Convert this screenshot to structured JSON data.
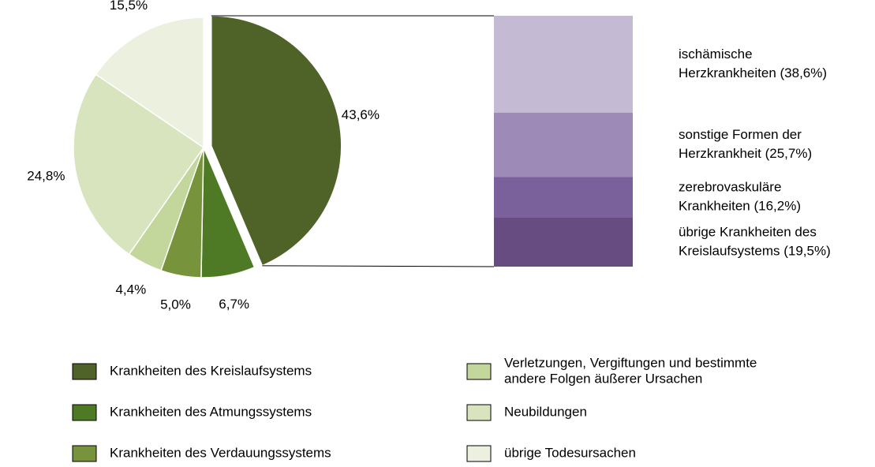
{
  "chart_data": {
    "type": "pie",
    "categories": [
      [
        "Krankheiten des Kreislaufsystems"
      ],
      [
        "Krankheiten des Atmungssystems"
      ],
      [
        "Krankheiten des Verdauungssystems"
      ],
      [
        "Verletzungen, Vergiftungen und bestimmte",
        "andere Folgen äußerer Ursachen"
      ],
      [
        "Neubildungen"
      ],
      [
        "übrige Todesursachen"
      ]
    ],
    "values": [
      43.6,
      6.7,
      5.0,
      4.4,
      24.8,
      15.5
    ],
    "value_labels": [
      "43,6%",
      "6,7%",
      "5,0%",
      "4,4%",
      "24,8%",
      "15,5%"
    ],
    "colors": [
      "#4f6228",
      "#4e7a26",
      "#77933c",
      "#c3d69b",
      "#d7e4bd",
      "#ebf1de"
    ],
    "exploded": 0,
    "breakdown": {
      "type": "bar",
      "stacked": true,
      "labels": [
        [
          "ischämische",
          "Herzkrankheiten (38,6%)"
        ],
        [
          "sonstige Formen der",
          "Herzkrankheit (25,7%)"
        ],
        [
          "zerebrovaskuläre",
          "Krankheiten (16,2%)"
        ],
        [
          "übrige Krankheiten des",
          "Kreislaufsystems (19,5%)"
        ]
      ],
      "values": [
        38.6,
        25.7,
        16.2,
        19.5
      ],
      "colors": [
        "#c4bad3",
        "#9e8ab6",
        "#7b619c",
        "#664c80"
      ]
    }
  }
}
